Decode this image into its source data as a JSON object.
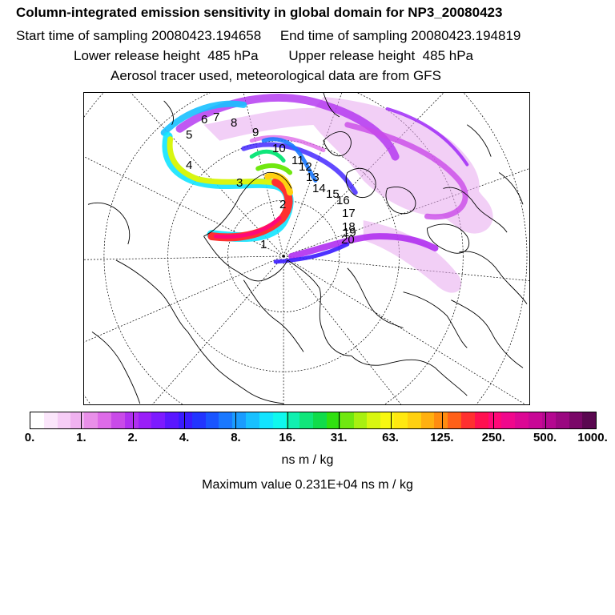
{
  "header": {
    "title": "Column-integrated emission sensitivity in global domain for NP3_20080423",
    "sampling_line": "Start time of sampling 20080423.194658     End time of sampling 20080423.194819",
    "release_line": "Lower release height  485 hPa        Upper release height  485 hPa",
    "tracer_line": "Aerosol tracer used, meteorological data are from GFS"
  },
  "map": {
    "markers": [
      "1",
      "2",
      "3",
      "4",
      "5",
      "6",
      "7",
      "8",
      "9",
      "10",
      "11",
      "12",
      "13",
      "14",
      "15",
      "16",
      "17",
      "18",
      "19",
      "20"
    ]
  },
  "colorbar": {
    "ticks": [
      "0.",
      "1.",
      "2.",
      "4.",
      "8.",
      "16.",
      "31.",
      "63.",
      "125.",
      "250.",
      "500.",
      "1000."
    ],
    "colors": [
      "#ffffff",
      "#fbe6fb",
      "#f6cdf6",
      "#f0b2f0",
      "#e98fe9",
      "#de6be8",
      "#c94ae8",
      "#b02ff0",
      "#9a1ef8",
      "#7d1aff",
      "#5a17ff",
      "#3a1bff",
      "#2235ff",
      "#1a55ff",
      "#1a78ff",
      "#1a9cff",
      "#18c0ff",
      "#12e4ff",
      "#0ff8ee",
      "#10f0b0",
      "#10e67a",
      "#10dc4a",
      "#30e010",
      "#70e810",
      "#a8f010",
      "#d8f610",
      "#f8f810",
      "#ffe810",
      "#ffd010",
      "#ffb010",
      "#ff8c10",
      "#ff6018",
      "#ff3030",
      "#ff1050",
      "#ff0878",
      "#f0088c",
      "#dc0894",
      "#c80896",
      "#b40890",
      "#9a0880",
      "#7a0868",
      "#5a0850"
    ]
  },
  "units": "ns m / kg",
  "max_value": "Maximum value  0.231E+04 ns m / kg"
}
